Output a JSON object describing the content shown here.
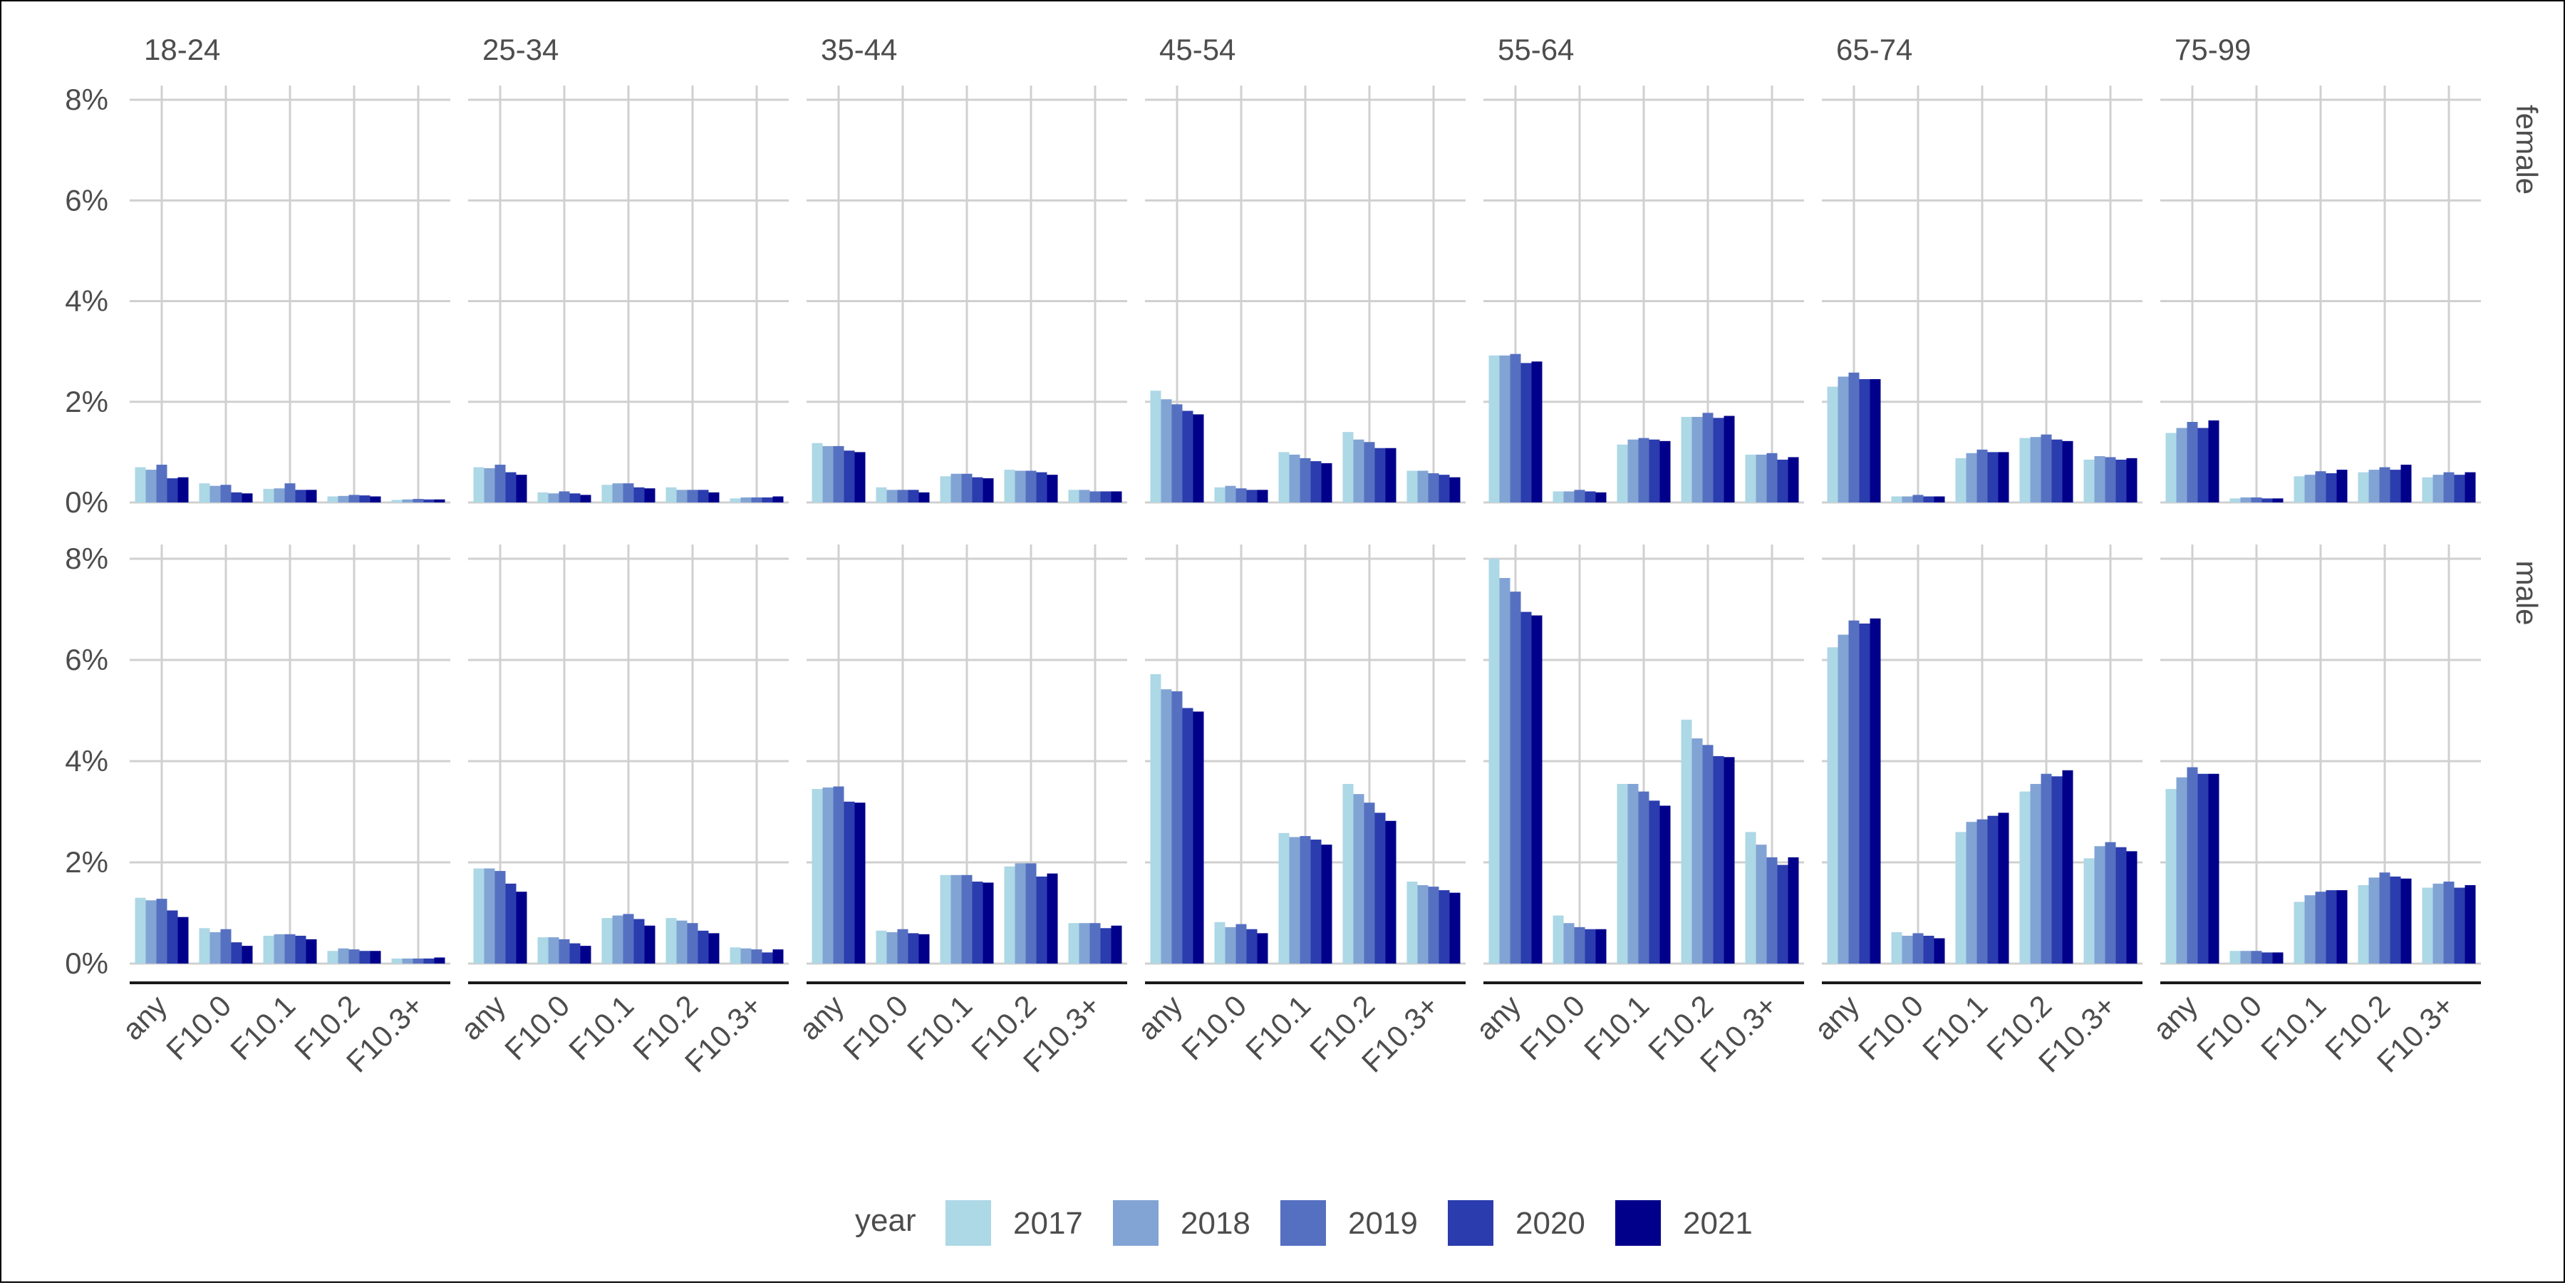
{
  "chart_data": {
    "type": "bar",
    "layout": "facet grid (age group columns × sex rows)",
    "age_groups": [
      "18-24",
      "25-34",
      "35-44",
      "45-54",
      "55-64",
      "65-74",
      "75-99"
    ],
    "sexes": [
      "female",
      "male"
    ],
    "categories": [
      "any",
      "F10.0",
      "F10.1",
      "F10.2",
      "F10.3+"
    ],
    "y_ticks": [
      "0%",
      "2%",
      "4%",
      "6%",
      "8%"
    ],
    "ylim": [
      0,
      8
    ],
    "grid": true,
    "legend": {
      "title": "year",
      "position": "bottom",
      "entries": [
        {
          "label": "2017",
          "color": "#add8e6"
        },
        {
          "label": "2018",
          "color": "#82a4d4"
        },
        {
          "label": "2019",
          "color": "#5670c1"
        },
        {
          "label": "2020",
          "color": "#2b3cae"
        },
        {
          "label": "2021",
          "color": "#00008b"
        }
      ]
    },
    "values": {
      "female": {
        "18-24": {
          "any": [
            0.7,
            0.65,
            0.75,
            0.48,
            0.5
          ],
          "F10.0": [
            0.38,
            0.33,
            0.35,
            0.2,
            0.18
          ],
          "F10.1": [
            0.27,
            0.28,
            0.38,
            0.25,
            0.25
          ],
          "F10.2": [
            0.12,
            0.13,
            0.15,
            0.14,
            0.12
          ],
          "F10.3+": [
            0.05,
            0.06,
            0.07,
            0.06,
            0.06
          ]
        },
        "25-34": {
          "any": [
            0.7,
            0.68,
            0.75,
            0.6,
            0.55
          ],
          "F10.0": [
            0.2,
            0.18,
            0.22,
            0.18,
            0.15
          ],
          "F10.1": [
            0.35,
            0.38,
            0.38,
            0.3,
            0.28
          ],
          "F10.2": [
            0.3,
            0.25,
            0.25,
            0.25,
            0.2
          ],
          "F10.3+": [
            0.08,
            0.1,
            0.1,
            0.1,
            0.12
          ]
        },
        "35-44": {
          "any": [
            1.18,
            1.12,
            1.12,
            1.03,
            1.0
          ],
          "F10.0": [
            0.3,
            0.25,
            0.25,
            0.25,
            0.2
          ],
          "F10.1": [
            0.52,
            0.57,
            0.57,
            0.5,
            0.48
          ],
          "F10.2": [
            0.65,
            0.63,
            0.63,
            0.6,
            0.55
          ],
          "F10.3+": [
            0.25,
            0.25,
            0.22,
            0.22,
            0.22
          ]
        },
        "45-54": {
          "any": [
            2.22,
            2.05,
            1.95,
            1.82,
            1.75
          ],
          "F10.0": [
            0.3,
            0.33,
            0.28,
            0.25,
            0.25
          ],
          "F10.1": [
            1.0,
            0.95,
            0.88,
            0.82,
            0.78
          ],
          "F10.2": [
            1.4,
            1.25,
            1.2,
            1.08,
            1.08
          ],
          "F10.3+": [
            0.63,
            0.63,
            0.58,
            0.55,
            0.5
          ]
        },
        "55-64": {
          "any": [
            2.92,
            2.92,
            2.95,
            2.77,
            2.8
          ],
          "F10.0": [
            0.22,
            0.22,
            0.25,
            0.22,
            0.2
          ],
          "F10.1": [
            1.15,
            1.25,
            1.28,
            1.25,
            1.22
          ],
          "F10.2": [
            1.7,
            1.7,
            1.78,
            1.68,
            1.72
          ],
          "F10.3+": [
            0.95,
            0.95,
            0.98,
            0.85,
            0.9
          ]
        },
        "65-74": {
          "any": [
            2.3,
            2.5,
            2.58,
            2.45,
            2.45
          ],
          "F10.0": [
            0.12,
            0.12,
            0.15,
            0.12,
            0.12
          ],
          "F10.1": [
            0.88,
            0.98,
            1.05,
            1.0,
            1.0
          ],
          "F10.2": [
            1.28,
            1.3,
            1.35,
            1.25,
            1.22
          ],
          "F10.3+": [
            0.85,
            0.92,
            0.9,
            0.85,
            0.88
          ]
        },
        "75-99": {
          "any": [
            1.38,
            1.48,
            1.6,
            1.48,
            1.63
          ],
          "F10.0": [
            0.08,
            0.1,
            0.1,
            0.08,
            0.08
          ],
          "F10.1": [
            0.52,
            0.55,
            0.62,
            0.58,
            0.65
          ],
          "F10.2": [
            0.6,
            0.65,
            0.7,
            0.65,
            0.75
          ],
          "F10.3+": [
            0.5,
            0.55,
            0.6,
            0.55,
            0.6
          ]
        }
      },
      "male": {
        "18-24": {
          "any": [
            1.3,
            1.25,
            1.28,
            1.05,
            0.92
          ],
          "F10.0": [
            0.7,
            0.62,
            0.68,
            0.42,
            0.35
          ],
          "F10.1": [
            0.55,
            0.58,
            0.58,
            0.55,
            0.48
          ],
          "F10.2": [
            0.25,
            0.3,
            0.28,
            0.25,
            0.25
          ],
          "F10.3+": [
            0.1,
            0.1,
            0.1,
            0.1,
            0.12
          ]
        },
        "25-34": {
          "any": [
            1.88,
            1.88,
            1.83,
            1.58,
            1.42
          ],
          "F10.0": [
            0.52,
            0.52,
            0.48,
            0.4,
            0.35
          ],
          "F10.1": [
            0.9,
            0.95,
            0.98,
            0.88,
            0.75
          ],
          "F10.2": [
            0.9,
            0.85,
            0.8,
            0.65,
            0.6
          ],
          "F10.3+": [
            0.32,
            0.3,
            0.28,
            0.22,
            0.28
          ]
        },
        "35-44": {
          "any": [
            3.45,
            3.48,
            3.5,
            3.2,
            3.18
          ],
          "F10.0": [
            0.65,
            0.62,
            0.68,
            0.6,
            0.58
          ],
          "F10.1": [
            1.75,
            1.75,
            1.75,
            1.62,
            1.6
          ],
          "F10.2": [
            1.92,
            1.98,
            1.98,
            1.72,
            1.78
          ],
          "F10.3+": [
            0.8,
            0.8,
            0.8,
            0.7,
            0.75
          ]
        },
        "45-54": {
          "any": [
            5.72,
            5.42,
            5.38,
            5.05,
            4.98
          ],
          "F10.0": [
            0.82,
            0.72,
            0.78,
            0.68,
            0.6
          ],
          "F10.1": [
            2.58,
            2.5,
            2.52,
            2.45,
            2.35
          ],
          "F10.2": [
            3.55,
            3.35,
            3.18,
            2.98,
            2.82
          ],
          "F10.3+": [
            1.62,
            1.55,
            1.52,
            1.45,
            1.4
          ]
        },
        "55-64": {
          "any": [
            8.0,
            7.62,
            7.35,
            6.95,
            6.88
          ],
          "F10.0": [
            0.95,
            0.8,
            0.72,
            0.68,
            0.68
          ],
          "F10.1": [
            3.55,
            3.55,
            3.4,
            3.22,
            3.12
          ],
          "F10.2": [
            4.82,
            4.45,
            4.32,
            4.1,
            4.08
          ],
          "F10.3+": [
            2.6,
            2.35,
            2.1,
            1.95,
            2.1
          ]
        },
        "65-74": {
          "any": [
            6.25,
            6.5,
            6.78,
            6.72,
            6.82
          ],
          "F10.0": [
            0.62,
            0.55,
            0.6,
            0.55,
            0.5
          ],
          "F10.1": [
            2.6,
            2.8,
            2.85,
            2.92,
            2.98
          ],
          "F10.2": [
            3.4,
            3.55,
            3.75,
            3.7,
            3.82
          ],
          "F10.3+": [
            2.08,
            2.32,
            2.4,
            2.3,
            2.22
          ]
        },
        "75-99": {
          "any": [
            3.45,
            3.68,
            3.88,
            3.75,
            3.75
          ],
          "F10.0": [
            0.25,
            0.25,
            0.25,
            0.22,
            0.22
          ],
          "F10.1": [
            1.22,
            1.35,
            1.42,
            1.45,
            1.45
          ],
          "F10.2": [
            1.55,
            1.7,
            1.8,
            1.72,
            1.68
          ],
          "F10.3+": [
            1.5,
            1.58,
            1.62,
            1.5,
            1.55
          ]
        }
      }
    }
  }
}
